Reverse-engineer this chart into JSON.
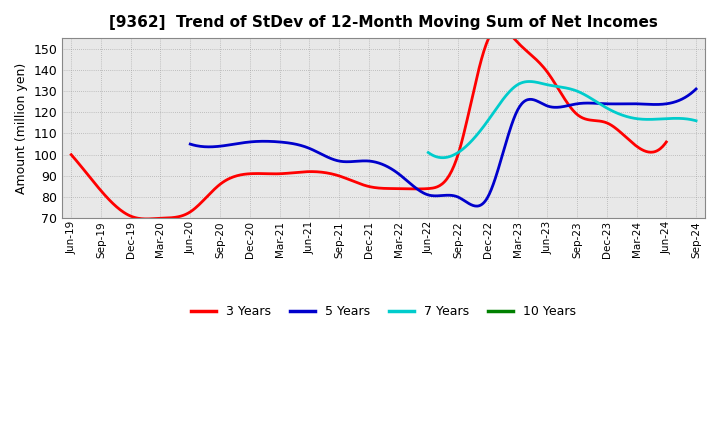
{
  "title": "[9362]  Trend of StDev of 12-Month Moving Sum of Net Incomes",
  "ylabel": "Amount (million yen)",
  "background_color": "#ffffff",
  "plot_bg_color": "#e8e8e8",
  "grid_color": "#aaaaaa",
  "x_labels": [
    "Jun-19",
    "Sep-19",
    "Dec-19",
    "Mar-20",
    "Jun-20",
    "Sep-20",
    "Dec-20",
    "Mar-21",
    "Jun-21",
    "Sep-21",
    "Dec-21",
    "Mar-22",
    "Jun-22",
    "Sep-22",
    "Dec-22",
    "Mar-23",
    "Jun-23",
    "Sep-23",
    "Dec-23",
    "Mar-24",
    "Jun-24",
    "Sep-24"
  ],
  "ylim": [
    70,
    155
  ],
  "yticks": [
    70,
    80,
    90,
    100,
    110,
    120,
    130,
    140,
    150
  ],
  "series": {
    "3 Years": {
      "color": "#ff0000",
      "data": [
        100,
        83,
        71,
        70,
        73,
        86,
        91,
        91,
        92,
        90,
        85,
        84,
        84,
        100,
        154,
        153,
        139,
        119,
        115,
        104,
        106,
        null
      ]
    },
    "5 Years": {
      "color": "#0000cc",
      "data": [
        null,
        null,
        null,
        null,
        105,
        104,
        106,
        106,
        103,
        97,
        97,
        91,
        81,
        80,
        80,
        121,
        123,
        124,
        124,
        124,
        124,
        131
      ]
    },
    "7 Years": {
      "color": "#00cccc",
      "data": [
        null,
        null,
        null,
        null,
        null,
        null,
        null,
        null,
        null,
        null,
        null,
        null,
        101,
        101,
        116,
        133,
        133,
        130,
        122,
        117,
        117,
        116
      ]
    },
    "10 Years": {
      "color": "#008000",
      "data": [
        null,
        null,
        null,
        null,
        null,
        null,
        null,
        null,
        null,
        null,
        null,
        null,
        null,
        null,
        null,
        null,
        null,
        null,
        null,
        null,
        null,
        null
      ]
    }
  },
  "legend": {
    "3 Years": "#ff0000",
    "5 Years": "#0000cc",
    "7 Years": "#00cccc",
    "10 Years": "#008000"
  }
}
